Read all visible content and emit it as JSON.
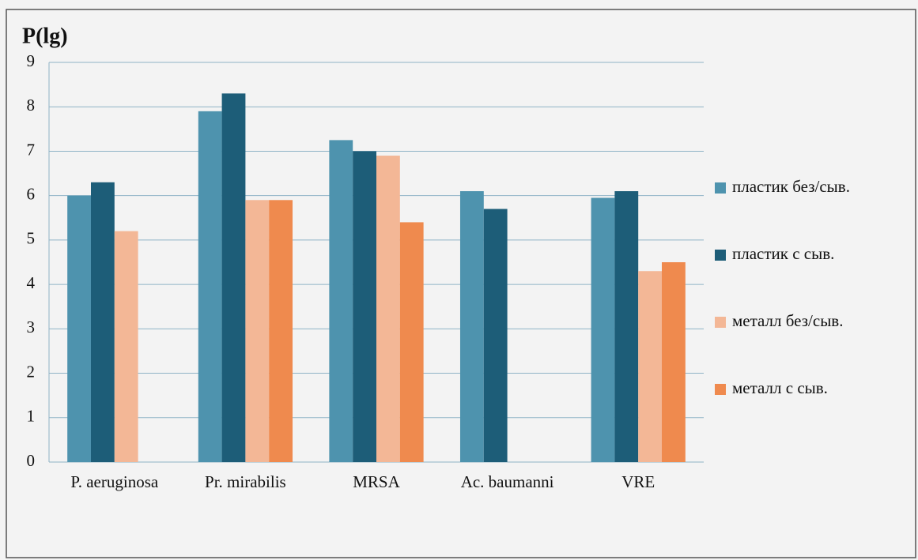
{
  "chart_data": {
    "type": "bar",
    "title": "P(lg)",
    "categories": [
      "P. aeruginosa",
      "Pr. mirabilis",
      "MRSA",
      "Ac. baumanni",
      "VRE"
    ],
    "series": [
      {
        "name": "пластик без/сыв.",
        "color": "#4e93ae",
        "values": [
          6.0,
          7.9,
          7.25,
          6.1,
          5.95
        ]
      },
      {
        "name": "пластик с сыв.",
        "color": "#1d5d78",
        "values": [
          6.3,
          8.3,
          7.0,
          5.7,
          6.1
        ]
      },
      {
        "name": "металл без/сыв.",
        "color": "#f3b796",
        "values": [
          5.2,
          5.9,
          6.9,
          null,
          4.3
        ]
      },
      {
        "name": "металл с сыв.",
        "color": "#ef8a4e",
        "values": [
          null,
          5.9,
          5.4,
          null,
          4.5
        ]
      }
    ],
    "ylim": [
      0,
      9
    ],
    "yticks": [
      0,
      1,
      2,
      3,
      4,
      5,
      6,
      7,
      8,
      9
    ],
    "grid": true,
    "legend": "right"
  }
}
